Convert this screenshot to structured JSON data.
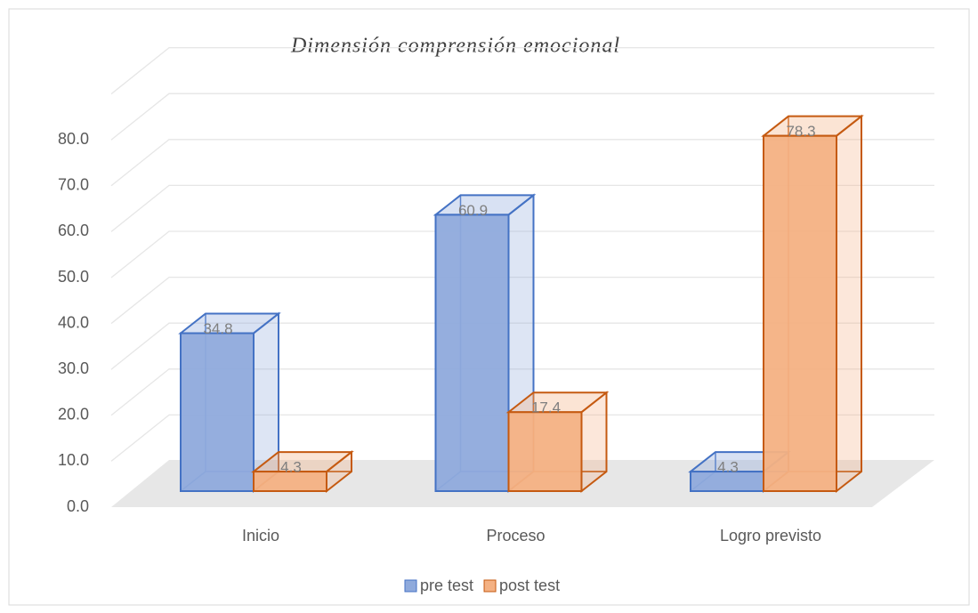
{
  "chart_data": {
    "type": "bar3d",
    "title": "Dimensión comprensión emocional",
    "categories": [
      "Inicio",
      "Proceso",
      "Logro previsto"
    ],
    "series": [
      {
        "name": "pre test",
        "color": "#4472c4",
        "fill": "#8faadc",
        "values": [
          34.8,
          60.9,
          4.3
        ]
      },
      {
        "name": "post test",
        "color": "#c55a11",
        "fill": "#f4b183",
        "values": [
          4.3,
          17.4,
          78.3
        ]
      }
    ],
    "ylim": [
      0,
      90
    ],
    "yticks": [
      {
        "value": 0,
        "label": "0.0"
      },
      {
        "value": 10,
        "label": "10.0"
      },
      {
        "value": 20,
        "label": "20.0"
      },
      {
        "value": 30,
        "label": "30.0"
      },
      {
        "value": 40,
        "label": "40.0"
      },
      {
        "value": 50,
        "label": "50.0"
      },
      {
        "value": 60,
        "label": "60.0"
      },
      {
        "value": 70,
        "label": "70.0"
      },
      {
        "value": 80,
        "label": "80.0"
      }
    ],
    "grid": true,
    "legend": "bottom"
  }
}
